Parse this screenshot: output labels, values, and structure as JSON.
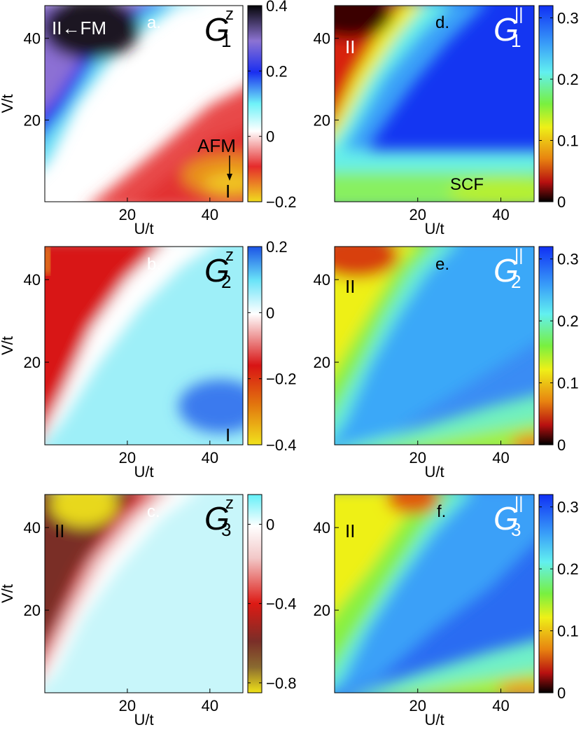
{
  "chart_data": [
    {
      "type": "heatmap",
      "panel_label": "a.",
      "symbol": "G",
      "subscript": "1",
      "superscript": "z",
      "xlabel": "U/t",
      "ylabel": "V/t",
      "xlim": [
        0,
        48
      ],
      "ylim": [
        0,
        48
      ],
      "xticks": [
        "20",
        "40"
      ],
      "yticks": [
        "20",
        "40"
      ],
      "colormap": "blue-white-red-orange",
      "clim": [
        -0.2,
        0.4
      ],
      "colorbar_ticks": [
        "0.4",
        "0.2",
        "0",
        "−0.2"
      ],
      "annotations": [
        "II←FM",
        "AFM",
        "I"
      ],
      "grid": false
    },
    {
      "type": "heatmap",
      "panel_label": "b.",
      "symbol": "G",
      "subscript": "2",
      "superscript": "z",
      "xlabel": "U/t",
      "ylabel": "V/t",
      "xlim": [
        0,
        48
      ],
      "ylim": [
        0,
        48
      ],
      "xticks": [
        "20",
        "40"
      ],
      "yticks": [
        "20",
        "40"
      ],
      "colormap": "blue-white-red-yellow",
      "clim": [
        -0.4,
        0.2
      ],
      "colorbar_ticks": [
        "0.2",
        "0",
        "−0.2",
        "−0.4"
      ],
      "annotations": [
        "I"
      ],
      "grid": false
    },
    {
      "type": "heatmap",
      "panel_label": "c.",
      "symbol": "G",
      "subscript": "3",
      "superscript": "z",
      "xlabel": "U/t",
      "ylabel": "V/t",
      "xlim": [
        0,
        48
      ],
      "ylim": [
        0,
        48
      ],
      "xticks": [
        "20",
        "40"
      ],
      "yticks": [
        "20",
        "40"
      ],
      "colormap": "cyan-white-red-brown-yellow",
      "clim": [
        -0.85,
        0.15
      ],
      "colorbar_ticks": [
        "0",
        "−0.4",
        "−0.8"
      ],
      "annotations": [
        "II"
      ],
      "grid": false
    },
    {
      "type": "heatmap",
      "panel_label": "d.",
      "symbol": "G",
      "subscript": "1",
      "superscript": "||",
      "xlabel": "U/t",
      "ylabel": "",
      "xlim": [
        0,
        48
      ],
      "ylim": [
        0,
        48
      ],
      "xticks": [
        "20",
        "40"
      ],
      "yticks": [
        "20",
        "40"
      ],
      "colormap": "jet-like",
      "clim": [
        0,
        0.32
      ],
      "colorbar_ticks": [
        "0.3",
        "0.2",
        "0.1",
        "0"
      ],
      "annotations": [
        "II",
        "SCF"
      ],
      "grid": false
    },
    {
      "type": "heatmap",
      "panel_label": "e.",
      "symbol": "G",
      "subscript": "2",
      "superscript": "||",
      "xlabel": "U/t",
      "ylabel": "",
      "xlim": [
        0,
        48
      ],
      "ylim": [
        0,
        48
      ],
      "xticks": [
        "20",
        "40"
      ],
      "yticks": [
        "20",
        "40"
      ],
      "colormap": "jet-like",
      "clim": [
        0,
        0.32
      ],
      "colorbar_ticks": [
        "0.3",
        "0.2",
        "0.1",
        "0"
      ],
      "annotations": [
        "II"
      ],
      "grid": false
    },
    {
      "type": "heatmap",
      "panel_label": "f.",
      "symbol": "G",
      "subscript": "3",
      "superscript": "||",
      "xlabel": "U/t",
      "ylabel": "",
      "xlim": [
        0,
        48
      ],
      "ylim": [
        0,
        48
      ],
      "xticks": [
        "20",
        "40"
      ],
      "yticks": [
        "20",
        "40"
      ],
      "colormap": "jet-like",
      "clim": [
        0,
        0.32
      ],
      "colorbar_ticks": [
        "0.3",
        "0.2",
        "0.1",
        "0"
      ],
      "annotations": [
        "II"
      ],
      "grid": false
    }
  ]
}
